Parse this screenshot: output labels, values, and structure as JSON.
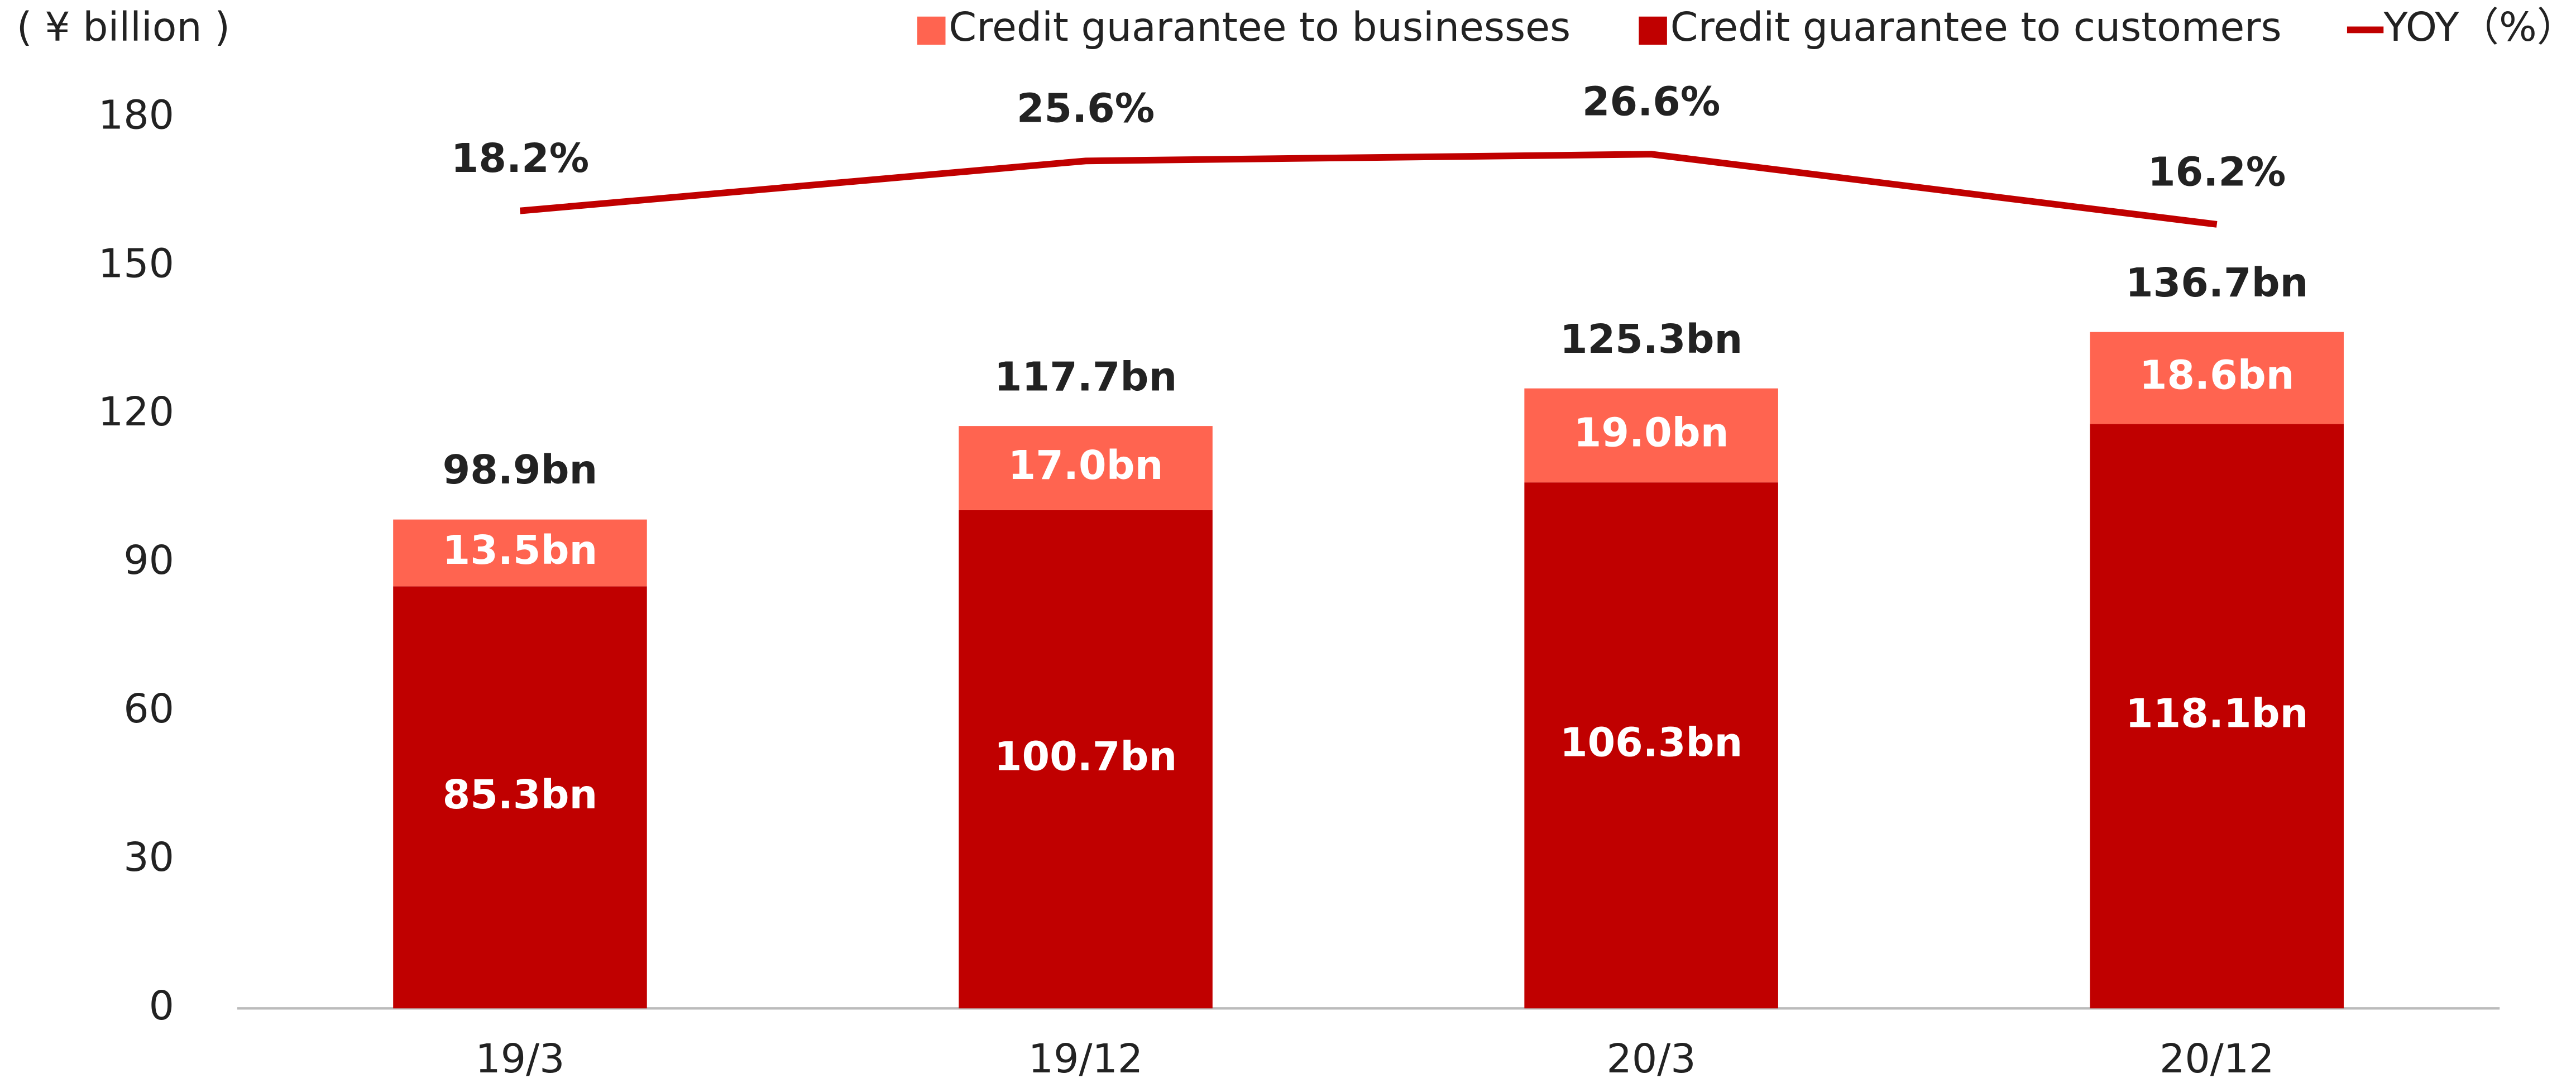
{
  "chart_data": {
    "type": "bar",
    "stacked": true,
    "y_label": "( ¥ billion )",
    "categories": [
      "19/3",
      "19/12",
      "20/3",
      "20/12"
    ],
    "ylim": [
      0,
      180
    ],
    "yticks": [
      0,
      30,
      60,
      90,
      120,
      150,
      180
    ],
    "y2lim": [
      -100,
      32
    ],
    "series": [
      {
        "name": "Credit guarantee to customers",
        "color": "#c00000",
        "values": [
          85.3,
          100.7,
          106.3,
          118.1
        ],
        "value_labels": [
          "85.3bn",
          "100.7bn",
          "106.3bn",
          "118.1bn"
        ]
      },
      {
        "name": "Credit guarantee to businesses",
        "color": "#ff6450",
        "values": [
          13.5,
          17.0,
          19.0,
          18.6
        ],
        "value_labels": [
          "13.5bn",
          "17.0bn",
          "19.0bn",
          "18.6bn"
        ]
      },
      {
        "name": "YOY（%）",
        "type": "line",
        "axis": "y2",
        "color": "#c00000",
        "values": [
          18.2,
          25.6,
          26.6,
          16.2
        ],
        "value_labels": [
          "18.2%",
          "25.6%",
          "26.6%",
          "16.2%"
        ]
      }
    ],
    "totals": {
      "values": [
        98.9,
        117.7,
        125.3,
        136.7
      ],
      "value_labels": [
        "98.9bn",
        "117.7bn",
        "125.3bn",
        "136.7bn"
      ]
    },
    "legend_order": [
      1,
      0,
      2
    ]
  }
}
